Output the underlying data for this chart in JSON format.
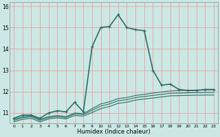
{
  "title": "",
  "xlabel": "Humidex (Indice chaleur)",
  "background_color": "#cce8e4",
  "grid_color": "#e8a0a0",
  "line_color": "#2a6e64",
  "xlim": [
    -0.5,
    23.5
  ],
  "ylim": [
    10.5,
    16.2
  ],
  "xticks": [
    0,
    1,
    2,
    3,
    4,
    5,
    6,
    7,
    8,
    9,
    10,
    11,
    12,
    13,
    14,
    15,
    16,
    17,
    18,
    19,
    20,
    21,
    22,
    23
  ],
  "yticks": [
    11,
    12,
    13,
    14,
    15,
    16
  ],
  "series": [
    {
      "x": [
        0,
        1,
        2,
        3,
        4,
        5,
        6,
        7,
        8,
        9,
        10,
        11,
        12,
        13,
        14,
        15,
        16,
        17,
        18,
        19,
        20,
        21,
        22,
        23
      ],
      "y": [
        10.75,
        10.9,
        10.9,
        10.75,
        11.0,
        11.1,
        11.05,
        11.5,
        11.05,
        14.1,
        15.0,
        15.05,
        15.6,
        15.0,
        14.9,
        14.85,
        13.0,
        12.3,
        12.35,
        12.1,
        12.05,
        12.05,
        12.1,
        12.1
      ],
      "marker": true,
      "linewidth": 1.2
    },
    {
      "x": [
        0,
        1,
        2,
        3,
        4,
        5,
        6,
        7,
        8,
        9,
        10,
        11,
        12,
        13,
        14,
        15,
        16,
        17,
        18,
        19,
        20,
        21,
        22,
        23
      ],
      "y": [
        10.7,
        10.82,
        10.87,
        10.7,
        10.83,
        10.88,
        10.83,
        11.0,
        10.97,
        11.2,
        11.42,
        11.52,
        11.67,
        11.72,
        11.82,
        11.87,
        11.93,
        11.98,
        12.03,
        12.05,
        12.06,
        12.07,
        12.08,
        12.08
      ],
      "marker": false,
      "linewidth": 0.8
    },
    {
      "x": [
        0,
        1,
        2,
        3,
        4,
        5,
        6,
        7,
        8,
        9,
        10,
        11,
        12,
        13,
        14,
        15,
        16,
        17,
        18,
        19,
        20,
        21,
        22,
        23
      ],
      "y": [
        10.65,
        10.77,
        10.82,
        10.65,
        10.78,
        10.83,
        10.78,
        10.95,
        10.92,
        11.12,
        11.32,
        11.42,
        11.57,
        11.62,
        11.72,
        11.77,
        11.82,
        11.87,
        11.92,
        11.93,
        11.94,
        11.95,
        11.96,
        11.96
      ],
      "marker": false,
      "linewidth": 0.8
    },
    {
      "x": [
        0,
        1,
        2,
        3,
        4,
        5,
        6,
        7,
        8,
        9,
        10,
        11,
        12,
        13,
        14,
        15,
        16,
        17,
        18,
        19,
        20,
        21,
        22,
        23
      ],
      "y": [
        10.58,
        10.7,
        10.75,
        10.58,
        10.72,
        10.77,
        10.72,
        10.88,
        10.85,
        11.02,
        11.2,
        11.3,
        11.45,
        11.5,
        11.6,
        11.65,
        11.7,
        11.75,
        11.8,
        11.81,
        11.82,
        11.83,
        11.84,
        11.84
      ],
      "marker": false,
      "linewidth": 0.8
    }
  ]
}
